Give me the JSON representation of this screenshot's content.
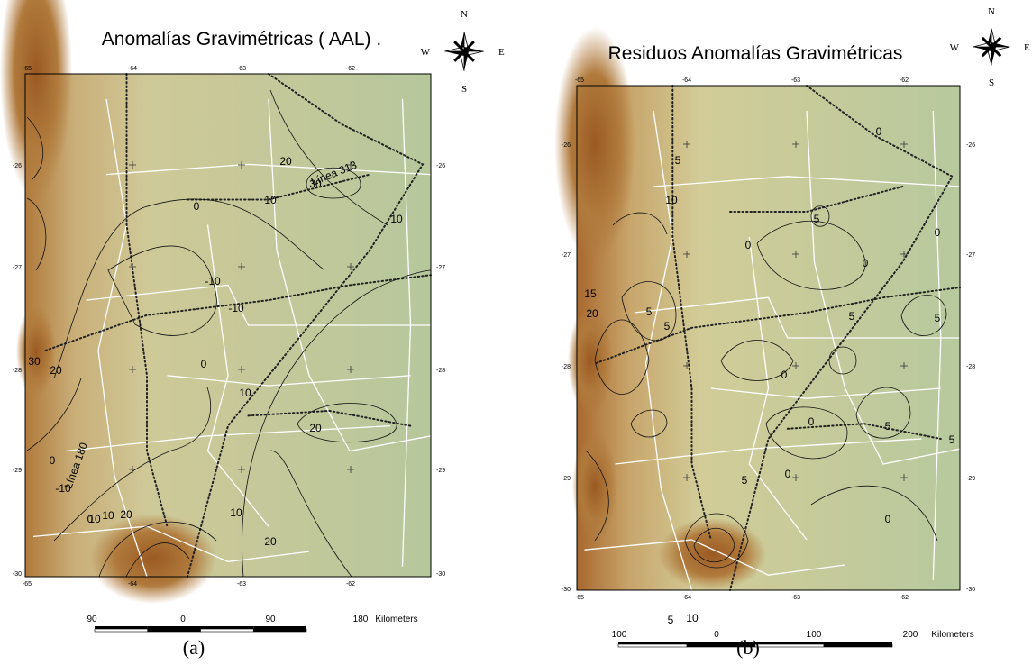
{
  "panels": [
    {
      "title": "Anomalías Gravimétricas  ( AAL)  .",
      "compass": {
        "n": "N",
        "s": "S",
        "w": "W",
        "e": "E"
      },
      "lon_ticks": [
        "-65",
        "-64",
        "-63",
        "-62"
      ],
      "lat_ticks": [
        "-26",
        "-27",
        "-28",
        "-29",
        "-30"
      ],
      "contour_labels": [
        "30",
        "20",
        "10",
        "0",
        "-10",
        "-10",
        "0",
        "10",
        "20",
        "10",
        "20",
        "30",
        "-10",
        "0",
        "10",
        "10",
        "20",
        "0",
        "10",
        "20"
      ],
      "line_labels": [
        "Línea 313",
        "Línea 180"
      ],
      "scale": {
        "ticks": [
          "90",
          "0",
          "90",
          "180"
        ],
        "unit": "Kilometers"
      },
      "caption": "(a)"
    },
    {
      "title": "Residuos Anomalías Gravimétricas",
      "compass": {
        "n": "N",
        "s": "S",
        "w": "W",
        "e": "E"
      },
      "lon_ticks": [
        "-65",
        "-64",
        "-63",
        "-62"
      ],
      "lat_ticks": [
        "-26",
        "-27",
        "-28",
        "-29",
        "-30"
      ],
      "contour_labels": [
        "0",
        "5",
        "10",
        "5",
        "0",
        "5",
        "0",
        "5",
        "0",
        "15",
        "20",
        "5",
        "0",
        "5",
        "0",
        "5",
        "10",
        "5",
        "0",
        "5",
        "0",
        "5"
      ],
      "line_labels": [],
      "scale": {
        "ticks": [
          "100",
          "0",
          "100",
          "200"
        ],
        "unit": "Kilometers"
      },
      "caption": "(b)"
    }
  ]
}
